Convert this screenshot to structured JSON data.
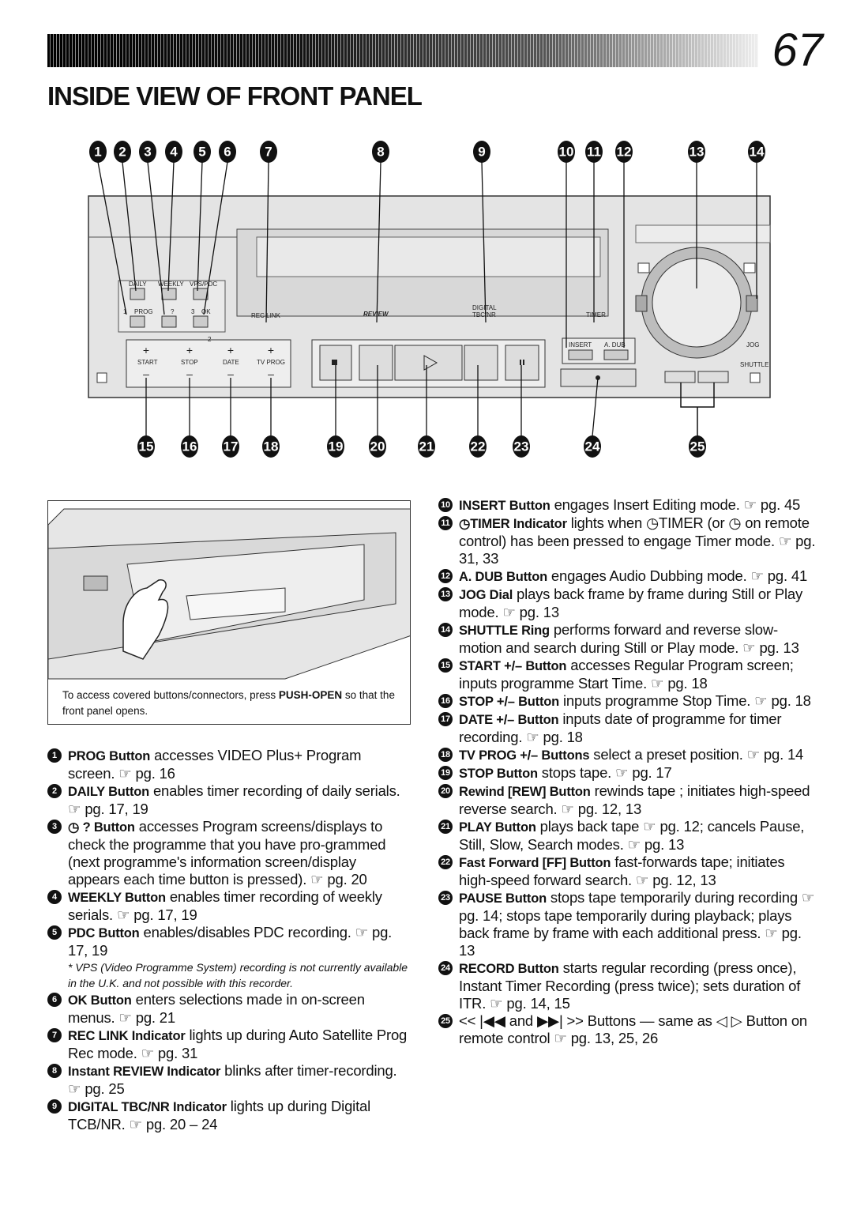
{
  "page_number": "67",
  "title": "INSIDE VIEW OF FRONT PANEL",
  "diagram": {
    "callouts_top": [
      1,
      2,
      3,
      4,
      5,
      6,
      7,
      8,
      9,
      10,
      11,
      12,
      13,
      14
    ],
    "callouts_bottom": [
      15,
      16,
      17,
      18,
      19,
      20,
      21,
      22,
      23,
      24,
      25
    ],
    "labels": [
      "DAILY",
      "WEEKLY",
      "VPS/PDC",
      "PROG",
      "?",
      "OK",
      "REC LINK",
      "REVIEW",
      "DIGITAL",
      "TBC/NR",
      "TIMER",
      "INSERT",
      "A. DUB",
      "START",
      "STOP",
      "DATE",
      "TV PROG",
      "JOG",
      "SHUTTLE",
      "1",
      "2",
      "3"
    ],
    "plus": "+",
    "minus": "–"
  },
  "inset_caption": {
    "before": "To access covered buttons/connectors, press ",
    "bold": "PUSH-OPEN",
    "after": " so that the front panel opens."
  },
  "items_left": [
    {
      "n": 1,
      "term": "PROG Button",
      "text": " accesses VIDEO Plus+ Program screen. ☞ pg. 16"
    },
    {
      "n": 2,
      "term": "DAILY Button",
      "text": " enables timer recording of daily serials. ☞ pg. 17, 19"
    },
    {
      "n": 3,
      "term": "◷ ? Button",
      "text": " accesses Program screens/displays to check the programme that you have pro-grammed (next programme's information screen/display appears each time button is pressed). ☞ pg. 20"
    },
    {
      "n": 4,
      "term": "WEEKLY Button",
      "text": " enables timer recording of weekly serials. ☞ pg. 17, 19"
    },
    {
      "n": 5,
      "term": "PDC Button",
      "text": " enables/disables PDC recording. ☞ pg. 17, 19"
    },
    {
      "n": 6,
      "term": "OK Button",
      "text": " enters selections made in on-screen menus. ☞ pg. 21"
    },
    {
      "n": 7,
      "term": "REC LINK Indicator",
      "text": " lights up during Auto Satellite Prog Rec mode. ☞ pg. 31"
    },
    {
      "n": 8,
      "term": "Instant REVIEW Indicator",
      "text": " blinks after timer-recording. ☞ pg. 25"
    },
    {
      "n": 9,
      "term": "DIGITAL TBC/NR Indicator",
      "text": " lights up during Digital TCB/NR. ☞ pg. 20 – 24"
    }
  ],
  "footnote": "* VPS (Video Programme System) recording is not currently available in the U.K. and not possible with this recorder.",
  "items_right": [
    {
      "n": 10,
      "term": "INSERT Button",
      "text": " engages Insert Editing mode. ☞ pg. 45"
    },
    {
      "n": 11,
      "term": "◷TIMER Indicator",
      "text": " lights when ◷TIMER (or ◷ on remote control) has been pressed to engage Timer mode. ☞ pg. 31, 33"
    },
    {
      "n": 12,
      "term": "A. DUB Button",
      "text": " engages Audio Dubbing mode. ☞ pg. 41"
    },
    {
      "n": 13,
      "term": "JOG Dial",
      "text": " plays back frame by frame during Still or Play mode. ☞ pg. 13"
    },
    {
      "n": 14,
      "term": "SHUTTLE Ring",
      "text": " performs forward and reverse slow-motion and search during Still or Play mode. ☞ pg. 13"
    },
    {
      "n": 15,
      "term": "START +/– Button",
      "text": " accesses Regular Program screen; inputs programme Start Time. ☞ pg. 18"
    },
    {
      "n": 16,
      "term": "STOP +/– Button",
      "text": " inputs programme Stop Time. ☞ pg. 18"
    },
    {
      "n": 17,
      "term": "DATE +/– Button",
      "text": " inputs date of programme for timer recording. ☞ pg. 18"
    },
    {
      "n": 18,
      "term": "TV PROG +/– Buttons",
      "text": " select a preset position. ☞ pg. 14"
    },
    {
      "n": 19,
      "term": "STOP Button",
      "text": " stops tape. ☞ pg. 17"
    },
    {
      "n": 20,
      "term": "Rewind [REW] Button",
      "text": " rewinds tape ; initiates high-speed reverse search. ☞ pg. 12, 13"
    },
    {
      "n": 21,
      "term": "PLAY Button",
      "text": " plays back tape ☞ pg. 12; cancels Pause, Still, Slow, Search modes. ☞ pg. 13"
    },
    {
      "n": 22,
      "term": "Fast Forward [FF] Button",
      "text": " fast-forwards tape; initiates high-speed forward search. ☞ pg. 12, 13"
    },
    {
      "n": 23,
      "term": "PAUSE Button",
      "text": " stops tape temporarily during recording ☞ pg. 14; stops tape temporarily during playback; plays back frame by frame with each additional press. ☞ pg. 13"
    },
    {
      "n": 24,
      "term": "RECORD Button",
      "text": " starts regular recording (press once), Instant Timer Recording (press twice); sets duration of ITR. ☞ pg. 14, 15"
    },
    {
      "n": 25,
      "text": "<< |◀◀ and ▶▶| >> Buttons — same as ◁ ▷ Button on remote control ☞ pg. 13, 25, 26"
    }
  ]
}
